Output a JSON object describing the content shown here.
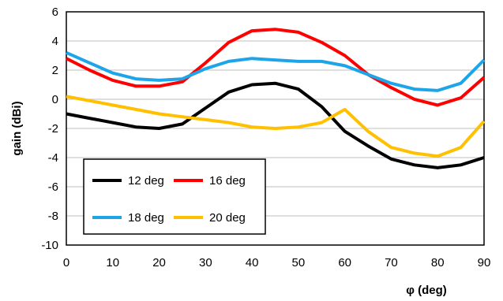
{
  "chart_data": {
    "type": "line",
    "xlabel": "φ  (deg)",
    "ylabel": "gain  (dBi)",
    "xlim": [
      0,
      90
    ],
    "ylim": [
      -10,
      6
    ],
    "xticks": [
      "0",
      "10",
      "20",
      "30",
      "40",
      "50",
      "60",
      "70",
      "80",
      "90"
    ],
    "yticks": [
      "-10",
      "-8",
      "-6",
      "-4",
      "-2",
      "0",
      "2",
      "4",
      "6"
    ],
    "grid": "horizontal",
    "legend_position": "bottom-left",
    "x": [
      0,
      5,
      10,
      15,
      20,
      25,
      30,
      35,
      40,
      45,
      50,
      55,
      60,
      65,
      70,
      75,
      80,
      85,
      90
    ],
    "series": [
      {
        "name": "12 deg",
        "color": "#000000",
        "values": [
          -1.0,
          -1.3,
          -1.6,
          -1.9,
          -2.0,
          -1.7,
          -0.6,
          0.5,
          1.0,
          1.1,
          0.7,
          -0.5,
          -2.2,
          -3.2,
          -4.1,
          -4.5,
          -4.7,
          -4.5,
          -4.0
        ]
      },
      {
        "name": "16 deg",
        "color": "#ff0000",
        "values": [
          2.8,
          2.0,
          1.3,
          0.9,
          0.9,
          1.2,
          2.5,
          3.9,
          4.7,
          4.8,
          4.6,
          3.9,
          3.0,
          1.7,
          0.8,
          0.0,
          -0.4,
          0.1,
          1.5
        ]
      },
      {
        "name": "18 deg",
        "color": "#1ea5e8",
        "values": [
          3.2,
          2.5,
          1.8,
          1.4,
          1.3,
          1.4,
          2.1,
          2.6,
          2.8,
          2.7,
          2.6,
          2.6,
          2.3,
          1.7,
          1.1,
          0.7,
          0.6,
          1.1,
          2.7
        ]
      },
      {
        "name": "20 deg",
        "color": "#ffc000",
        "values": [
          0.2,
          -0.1,
          -0.4,
          -0.7,
          -1.0,
          -1.2,
          -1.4,
          -1.6,
          -1.9,
          -2.0,
          -1.9,
          -1.6,
          -0.7,
          -2.2,
          -3.3,
          -3.7,
          -3.9,
          -3.3,
          -1.5
        ]
      }
    ]
  }
}
